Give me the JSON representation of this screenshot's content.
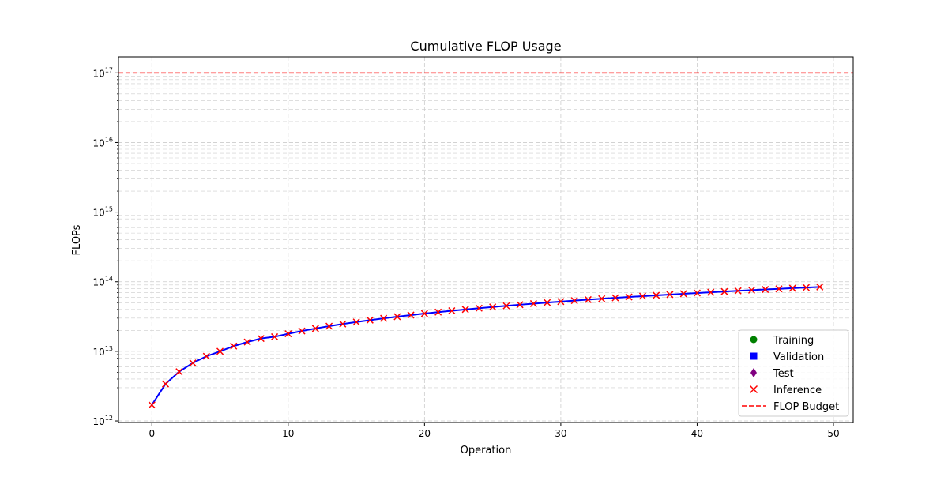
{
  "chart_data": {
    "type": "line",
    "title": "Cumulative FLOP Usage",
    "xlabel": "Operation",
    "ylabel": "FLOPs",
    "xlim": [
      -2.45,
      51.45
    ],
    "ylim": [
      950000000000.0,
      1.7e+17
    ],
    "yscale": "log",
    "grid": true,
    "legend_position": "lower-right",
    "x_ticks": [
      0,
      10,
      20,
      30,
      40,
      50
    ],
    "y_ticks": [
      1000000000000.0,
      10000000000000.0,
      100000000000000.0,
      1000000000000000.0,
      1e+16,
      1e+17
    ],
    "y_tick_labels": [
      {
        "base": "10",
        "exp": "12"
      },
      {
        "base": "10",
        "exp": "13"
      },
      {
        "base": "10",
        "exp": "14"
      },
      {
        "base": "10",
        "exp": "15"
      },
      {
        "base": "10",
        "exp": "16"
      },
      {
        "base": "10",
        "exp": "17"
      }
    ],
    "budget": 1e+17,
    "legend": [
      "Training",
      "Validation",
      "Test",
      "Inference",
      "FLOP Budget"
    ],
    "x": [
      0,
      1,
      2,
      3,
      4,
      5,
      6,
      7,
      8,
      9,
      10,
      11,
      12,
      13,
      14,
      15,
      16,
      17,
      18,
      19,
      20,
      21,
      22,
      23,
      24,
      25,
      26,
      27,
      28,
      29,
      30,
      31,
      32,
      33,
      34,
      35,
      36,
      37,
      38,
      39,
      40,
      41,
      42,
      43,
      44,
      45,
      46,
      47,
      48,
      49
    ],
    "cumulative_flops": [
      1700000000000.0,
      3400000000000.0,
      5100000000000.0,
      6800000000000.0,
      8500000000000.0,
      10000000000000.0,
      11900000000000.0,
      13600000000000.0,
      15300000000000.0,
      16200000000000.0,
      17900000000000.0,
      19600000000000.0,
      21300000000000.0,
      23000000000000.0,
      24700000000000.0,
      26400000000000.0,
      28100000000000.0,
      29800000000000.0,
      31500000000000.0,
      33200000000000.0,
      34900000000000.0,
      36600000000000.0,
      38300000000000.0,
      40000000000000.0,
      41700000000000.0,
      43400000000000.0,
      45100000000000.0,
      46800000000000.0,
      48500000000000.0,
      50200000000000.0,
      51900000000000.0,
      53600000000000.0,
      55300000000000.0,
      57000000000000.0,
      58700000000000.0,
      60400000000000.0,
      62100000000000.0,
      63800000000000.0,
      65500000000000.0,
      67200000000000.0,
      68900000000000.0,
      70600000000000.0,
      72300000000000.0,
      74000000000000.0,
      75700000000000.0,
      77400000000000.0,
      79100000000000.0,
      80800000000000.0,
      82500000000000.0,
      84200000000000.0
    ],
    "colors": {
      "line": "#0000ff",
      "training": "#008000",
      "validation": "#0000ff",
      "test": "#800080",
      "inference": "#ff0000",
      "budget": "#ff0000",
      "grid": "#cccccc"
    }
  }
}
